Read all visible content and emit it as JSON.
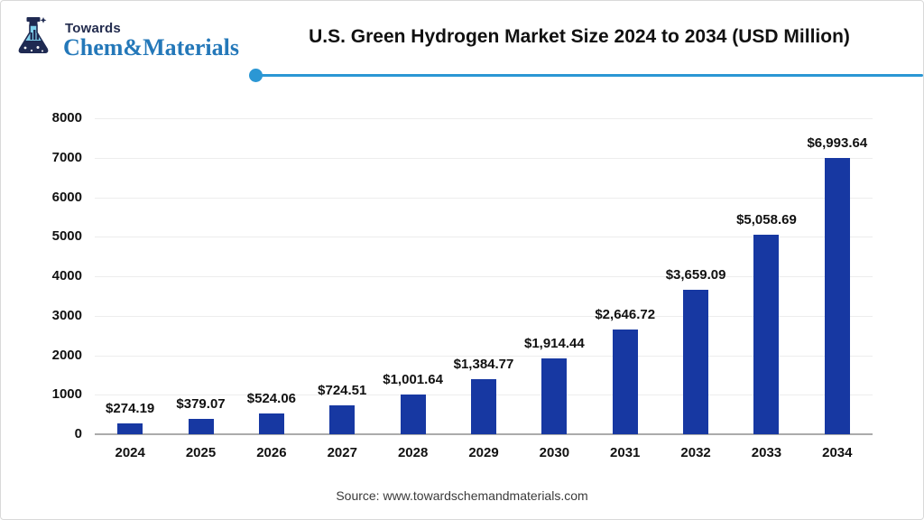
{
  "header": {
    "logo": {
      "icon": "flask-icon",
      "brand_top": "Towards",
      "brand_bottom": "Chem&Materials",
      "brand_top_color": "#232c4e",
      "brand_bottom_color": "#2478b9"
    },
    "accent_color": "#2b97d4"
  },
  "chart_data": {
    "type": "bar",
    "title": "U.S. Green Hydrogen Market Size 2024 to 2034 (USD Million)",
    "categories": [
      "2024",
      "2025",
      "2026",
      "2027",
      "2028",
      "2029",
      "2030",
      "2031",
      "2032",
      "2033",
      "2034"
    ],
    "values": [
      274.19,
      379.07,
      524.06,
      724.51,
      1001.64,
      1384.77,
      1914.44,
      2646.72,
      3659.09,
      5058.69,
      6993.64
    ],
    "value_labels": [
      "$274.19",
      "$379.07",
      "$524.06",
      "$724.51",
      "$1,001.64",
      "$1,384.77",
      "$1,914.44",
      "$2,646.72",
      "$3,659.09",
      "$5,058.69",
      "$6,993.64"
    ],
    "xlabel": "",
    "ylabel": "",
    "ylim": [
      0,
      8000
    ],
    "yticks": [
      0,
      1000,
      2000,
      3000,
      4000,
      5000,
      6000,
      7000,
      8000
    ],
    "grid": true,
    "legend": "none",
    "bar_color": "#1738a2"
  },
  "footer": {
    "source": "Source: www.towardschemandmaterials.com"
  }
}
